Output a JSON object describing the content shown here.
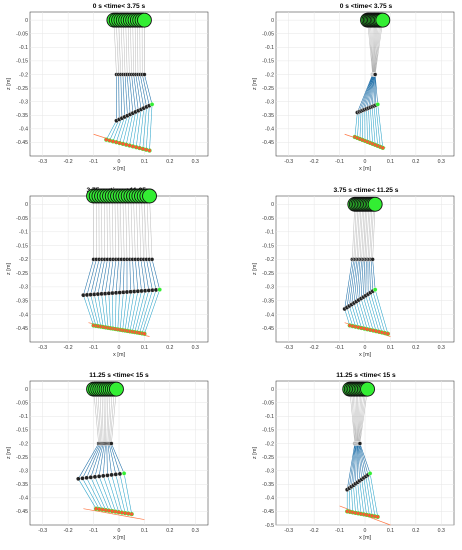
{
  "figure": {
    "panels": [
      {
        "title": "0 s <time< 3.75 s"
      },
      {
        "title": "0 s <time< 3.75 s"
      },
      {
        "title": "3.75 s <time< 11.25 s"
      },
      {
        "title": "3.75 s <time< 11.25 s"
      },
      {
        "title": "11.25 s <time< 15 s"
      },
      {
        "title": "11.25 s <time< 15 s"
      }
    ]
  },
  "colors": {
    "body": "#33ee33",
    "outline": "#111111",
    "thigh_link": "#1f6fa8",
    "shank_link": "#2aa3c9",
    "foot_marker": "#ff5533",
    "ground_line": "#ff7744",
    "trunk_link": "#9a9a9a"
  },
  "chart_data": [
    {
      "type": "scatter",
      "title": "0 s <time< 3.75 s",
      "xlabel": "x [m]",
      "ylabel": "z [m]",
      "xlim": [
        -0.35,
        0.35
      ],
      "ylim": [
        -0.5,
        0.03
      ],
      "xticks": [
        -0.3,
        -0.2,
        -0.1,
        0,
        0.1,
        0.2,
        0.3
      ],
      "yticks": [
        0,
        -0.05,
        -0.1,
        -0.15,
        -0.2,
        -0.25,
        -0.3,
        -0.35,
        -0.4,
        -0.45
      ],
      "grid": true,
      "body_x": [
        -0.02,
        0.1
      ],
      "body_z": 0,
      "hip_x": [
        -0.01,
        0.1
      ],
      "hip_z": -0.2,
      "knee_start": [
        -0.01,
        -0.37
      ],
      "knee_end": [
        0.13,
        -0.31
      ],
      "foot_start": [
        -0.05,
        -0.44
      ],
      "foot_end": [
        0.12,
        -0.48
      ],
      "ground_line": [
        [
          -0.1,
          -0.42
        ],
        [
          0.1,
          -0.48
        ]
      ],
      "frames": 14
    },
    {
      "type": "scatter",
      "title": "0 s <time< 3.75 s",
      "xlabel": "x [m]",
      "ylabel": "z [m]",
      "xlim": [
        -0.35,
        0.35
      ],
      "ylim": [
        -0.5,
        0.03
      ],
      "xticks": [
        -0.3,
        -0.2,
        -0.1,
        0,
        0.1,
        0.2,
        0.3
      ],
      "yticks": [
        0,
        -0.05,
        -0.1,
        -0.15,
        -0.2,
        -0.25,
        -0.3,
        -0.35,
        -0.4,
        -0.45
      ],
      "grid": true,
      "body_x": [
        0.01,
        0.07
      ],
      "body_z": 0,
      "hip_x": [
        0.03,
        0.04
      ],
      "hip_z": -0.2,
      "knee_start": [
        -0.03,
        -0.34
      ],
      "knee_end": [
        0.05,
        -0.31
      ],
      "foot_start": [
        -0.04,
        -0.43
      ],
      "foot_end": [
        0.07,
        -0.47
      ],
      "ground_line": [
        [
          -0.08,
          -0.42
        ],
        [
          0.08,
          -0.47
        ]
      ],
      "frames": 12
    },
    {
      "type": "scatter",
      "title": "3.75 s <time< 11.25 s",
      "xlabel": "x [m]",
      "ylabel": "z [m]",
      "xlim": [
        -0.35,
        0.35
      ],
      "ylim": [
        -0.5,
        0.03
      ],
      "xticks": [
        -0.3,
        -0.2,
        -0.1,
        0,
        0.1,
        0.2,
        0.3
      ],
      "yticks": [
        0,
        -0.05,
        -0.1,
        -0.15,
        -0.2,
        -0.25,
        -0.3,
        -0.35,
        -0.4,
        -0.45
      ],
      "grid": true,
      "body_x": [
        -0.1,
        0.12
      ],
      "body_z": 0.03,
      "hip_x": [
        -0.1,
        0.13
      ],
      "hip_z": -0.2,
      "knee_start": [
        -0.14,
        -0.33
      ],
      "knee_end": [
        0.16,
        -0.31
      ],
      "foot_start": [
        -0.1,
        -0.44
      ],
      "foot_end": [
        0.1,
        -0.47
      ],
      "ground_line": [
        [
          -0.12,
          -0.43
        ],
        [
          0.12,
          -0.48
        ]
      ],
      "frames": 22
    },
    {
      "type": "scatter",
      "title": "3.75 s <time< 11.25 s",
      "xlabel": "x [m]",
      "ylabel": "z [m]",
      "xlim": [
        -0.35,
        0.35
      ],
      "ylim": [
        -0.5,
        0.03
      ],
      "xticks": [
        -0.3,
        -0.2,
        -0.1,
        0,
        0.1,
        0.2,
        0.3
      ],
      "yticks": [
        0,
        -0.05,
        -0.1,
        -0.15,
        -0.2,
        -0.25,
        -0.3,
        -0.35,
        -0.4,
        -0.45
      ],
      "grid": true,
      "body_x": [
        -0.04,
        0.04
      ],
      "body_z": 0,
      "hip_x": [
        -0.05,
        0.03
      ],
      "hip_z": -0.2,
      "knee_start": [
        -0.08,
        -0.38
      ],
      "knee_end": [
        0.04,
        -0.31
      ],
      "foot_start": [
        -0.06,
        -0.44
      ],
      "foot_end": [
        0.09,
        -0.47
      ],
      "ground_line": [
        [
          -0.08,
          -0.43
        ],
        [
          0.1,
          -0.48
        ]
      ],
      "frames": 14
    },
    {
      "type": "scatter",
      "title": "11.25 s <time< 15 s",
      "xlabel": "x [m]",
      "ylabel": "z [m]",
      "xlim": [
        -0.35,
        0.35
      ],
      "ylim": [
        -0.5,
        0.03
      ],
      "xticks": [
        -0.3,
        -0.2,
        -0.1,
        0,
        0.1,
        0.2,
        0.3
      ],
      "yticks": [
        0,
        -0.05,
        -0.1,
        -0.15,
        -0.2,
        -0.25,
        -0.3,
        -0.35,
        -0.4,
        -0.45
      ],
      "grid": true,
      "body_x": [
        -0.1,
        -0.01
      ],
      "body_z": 0,
      "hip_x": [
        -0.08,
        -0.03
      ],
      "hip_z": -0.2,
      "knee_start": [
        -0.16,
        -0.33
      ],
      "knee_end": [
        0.02,
        -0.31
      ],
      "foot_start": [
        -0.09,
        -0.44
      ],
      "foot_end": [
        0.05,
        -0.46
      ],
      "ground_line": [
        [
          -0.14,
          -0.44
        ],
        [
          0.1,
          -0.48
        ]
      ],
      "frames": 12
    },
    {
      "type": "scatter",
      "title": "11.25 s <time< 15 s",
      "xlabel": "x [m]",
      "ylabel": "z [m]",
      "xlim": [
        -0.35,
        0.35
      ],
      "ylim": [
        -0.5,
        0.03
      ],
      "xticks": [
        -0.3,
        -0.2,
        -0.1,
        0,
        0.1,
        0.2,
        0.3
      ],
      "yticks": [
        0,
        -0.05,
        -0.1,
        -0.15,
        -0.2,
        -0.25,
        -0.3,
        -0.35,
        -0.4,
        -0.45,
        -0.5
      ],
      "grid": true,
      "body_x": [
        -0.06,
        0.01
      ],
      "body_z": 0,
      "hip_x": [
        -0.04,
        -0.02
      ],
      "hip_z": -0.2,
      "knee_start": [
        -0.07,
        -0.37
      ],
      "knee_end": [
        0.02,
        -0.31
      ],
      "foot_start": [
        -0.07,
        -0.45
      ],
      "foot_end": [
        0.05,
        -0.47
      ],
      "ground_line": [
        [
          -0.1,
          -0.43
        ],
        [
          0.1,
          -0.5
        ]
      ],
      "frames": 12
    }
  ]
}
